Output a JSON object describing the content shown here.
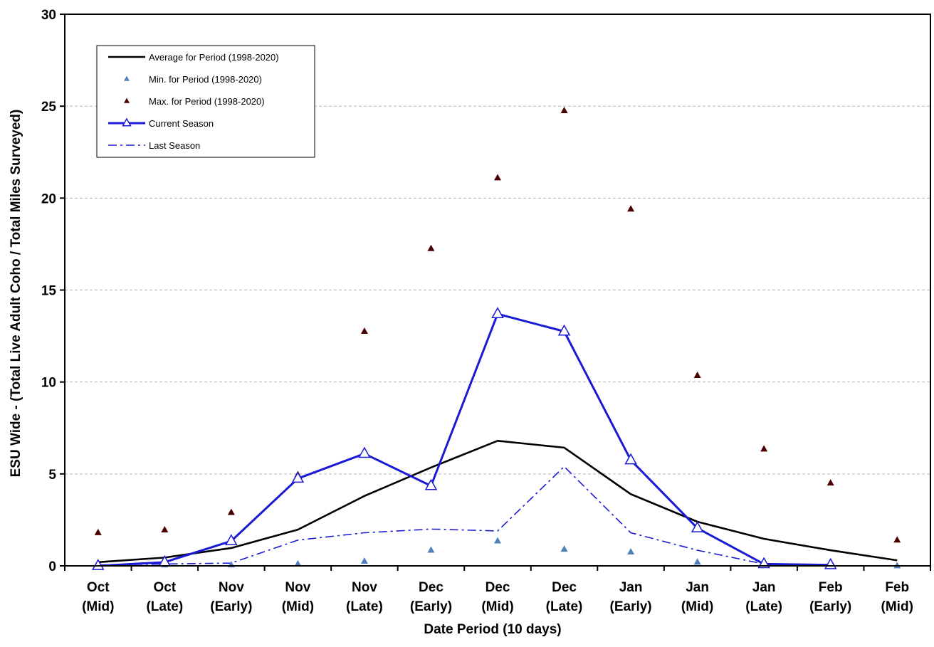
{
  "chart_data": {
    "type": "line",
    "xlabel": "Date Period (10 days)",
    "ylabel": "ESU Wide - (Total Live Adult Coho / Total Miles Surveyed)",
    "ylim": [
      0,
      30
    ],
    "yticks": [
      "0",
      "5",
      "10",
      "15",
      "20",
      "25",
      "30"
    ],
    "grid": "horizontal dashed",
    "legend_position": "top-left",
    "categories": [
      [
        "Oct",
        "(Mid)"
      ],
      [
        "Oct",
        "(Late)"
      ],
      [
        "Nov",
        "(Early)"
      ],
      [
        "Nov",
        "(Mid)"
      ],
      [
        "Nov",
        "(Late)"
      ],
      [
        "Dec",
        "(Early)"
      ],
      [
        "Dec",
        "(Mid)"
      ],
      [
        "Dec",
        "(Late)"
      ],
      [
        "Jan",
        "(Early)"
      ],
      [
        "Jan",
        "(Mid)"
      ],
      [
        "Jan",
        "(Late)"
      ],
      [
        "Feb",
        "(Early)"
      ],
      [
        "Feb",
        "(Mid)"
      ]
    ],
    "series": [
      {
        "name": "Average for Period (1998-2020)",
        "style": "line",
        "color": "#000000",
        "values": [
          0.2,
          0.45,
          0.97,
          1.97,
          3.8,
          5.35,
          6.8,
          6.43,
          3.9,
          2.4,
          1.47,
          0.85,
          0.3
        ]
      },
      {
        "name": "Min. for Period (1998-2020)",
        "style": "marker-triangle",
        "color": "#4f81bd",
        "values": [
          0.0,
          0.05,
          0.05,
          0.1,
          0.25,
          0.85,
          1.35,
          0.9,
          0.75,
          0.2,
          0.05,
          0.0,
          0.0
        ]
      },
      {
        "name": "Max. for Period (1998-2020)",
        "style": "marker-triangle",
        "color": "#4a0000",
        "values": [
          1.8,
          1.95,
          2.9,
          4.95,
          12.75,
          17.25,
          21.1,
          24.75,
          19.4,
          10.35,
          6.35,
          4.5,
          1.4
        ]
      },
      {
        "name": "Current Season",
        "style": "line-open-triangle",
        "color": "#1a1ad4",
        "values": [
          0.0,
          0.2,
          1.35,
          4.75,
          6.1,
          4.35,
          13.7,
          12.75,
          5.75,
          2.05,
          0.1,
          0.05,
          null
        ]
      },
      {
        "name": "Last Season",
        "style": "dash-dot",
        "color": "#1a1ad4",
        "values": [
          0.05,
          0.1,
          0.15,
          1.4,
          1.8,
          2.0,
          1.9,
          5.4,
          1.8,
          0.85,
          0.1,
          0.0,
          0.0
        ]
      }
    ]
  }
}
